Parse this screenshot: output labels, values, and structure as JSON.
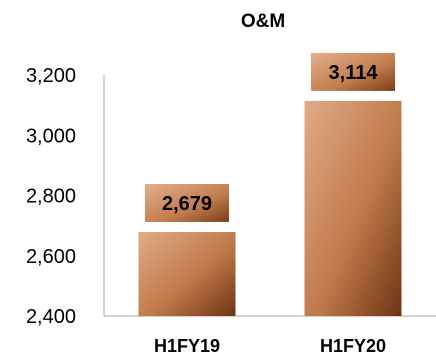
{
  "chart_data": {
    "type": "bar",
    "title": "O&M",
    "categories": [
      "H1FY19",
      "H1FY20"
    ],
    "values": [
      2679,
      3114
    ],
    "value_labels": [
      "2,679",
      "3,114"
    ],
    "ylim": [
      2400,
      3200
    ],
    "yticks": [
      2400,
      2600,
      2800,
      3000,
      3200
    ],
    "ytick_labels": [
      "2,400",
      "2,600",
      "2,800",
      "3,000",
      "3,200"
    ],
    "grid": false,
    "legend": "none",
    "colors": {
      "bar_light": "#e0ab88",
      "bar_mid": "#c07a4a",
      "bar_dark": "#6e3413",
      "axis": "#a6a6a6"
    }
  }
}
